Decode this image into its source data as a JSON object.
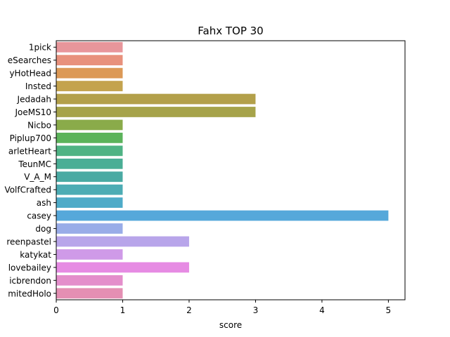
{
  "chart_data": {
    "type": "bar",
    "orientation": "horizontal",
    "title": "Fahx TOP 30",
    "xlabel": "score",
    "ylabel": "",
    "xlim": [
      0,
      5.25
    ],
    "xticks": [
      0,
      1,
      2,
      3,
      4,
      5
    ],
    "grid": false,
    "legend": "none",
    "categories": [
      "1pick",
      "eSearches",
      "yHotHead",
      "Insted",
      "Jedadah",
      "JoeMS10",
      "Nicbo",
      "Piplup700",
      "arletHeart",
      "TeunMC",
      "V_A_M",
      "VolfCrafted",
      "ash",
      "casey",
      "dog",
      "reenpastel",
      "katykat",
      "lovebailey",
      "icbrendon",
      "mitedHolo"
    ],
    "values": [
      1,
      1,
      1,
      1,
      3,
      3,
      1,
      1,
      1,
      1,
      1,
      1,
      1,
      5,
      1,
      2,
      1,
      2,
      1,
      1
    ],
    "colors": [
      "#e8969b",
      "#e8917c",
      "#dc9956",
      "#c4a34e",
      "#b3a04a",
      "#a6a34a",
      "#8aab4a",
      "#5bb35a",
      "#4fb384",
      "#4aae95",
      "#4aaaa3",
      "#4cacb4",
      "#4eabc8",
      "#56a8da",
      "#99ace8",
      "#b8a5ea",
      "#cf9ae8",
      "#e68be3",
      "#e48ecb",
      "#e48fb3"
    ]
  }
}
